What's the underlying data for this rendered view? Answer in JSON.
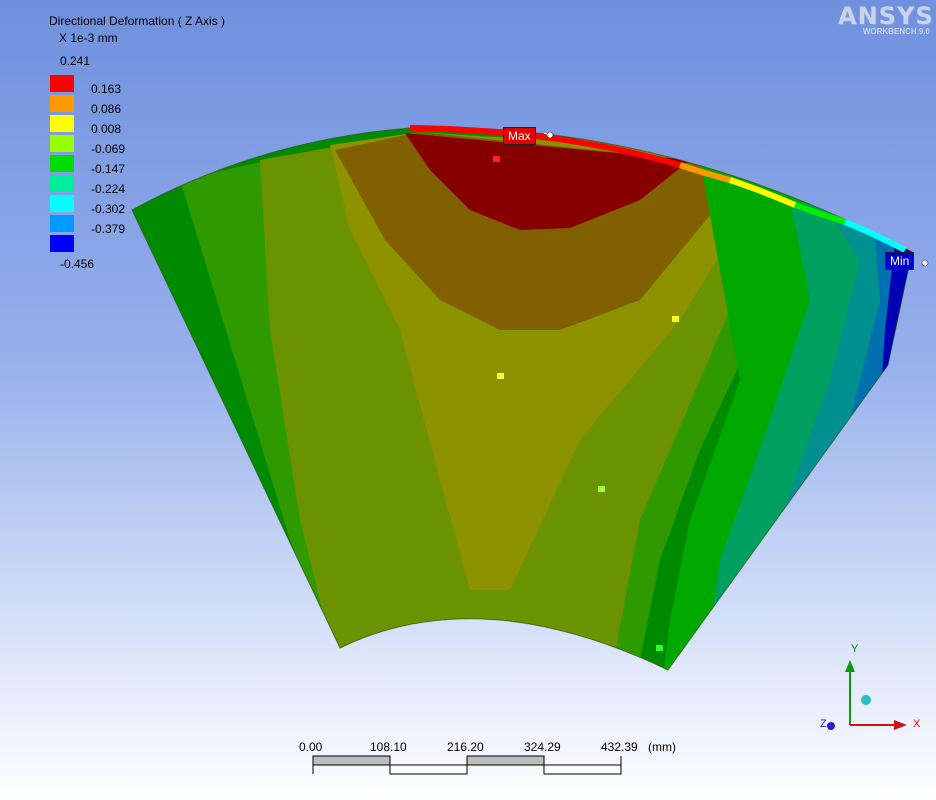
{
  "result": {
    "title": "Directional Deformation ( Z Axis )",
    "units": "X 1e-3 mm"
  },
  "legend": {
    "max": "0.241",
    "min": "-0.456",
    "levels": [
      "0.163",
      "0.086",
      "0.008",
      "-0.069",
      "-0.147",
      "-0.224",
      "-0.302",
      "-0.379"
    ],
    "colors": [
      "#ff0000",
      "#ff9900",
      "#ffff00",
      "#99ff00",
      "#00dd00",
      "#00ee99",
      "#00ffff",
      "#0099ff",
      "#0000ff"
    ]
  },
  "logo": {
    "name": "ANSYS",
    "product": "WORKBENCH 9.0"
  },
  "probes": {
    "max_label": "Max",
    "min_label": "Min"
  },
  "scale_bar": {
    "ticks": [
      "0.00",
      "108.10",
      "216.20",
      "324.29",
      "432.39"
    ],
    "unit": "(mm)"
  },
  "triad": {
    "x": "X",
    "y": "Y",
    "z": "Z"
  }
}
